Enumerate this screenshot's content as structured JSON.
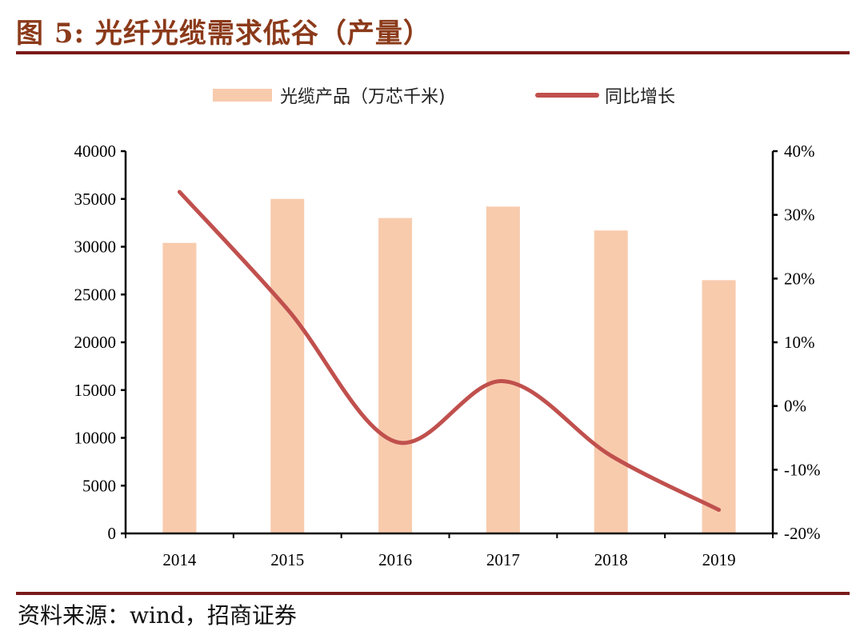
{
  "title": "图 5:  光纤光缆需求低谷（产量）",
  "source": "资料来源：wind，招商证券",
  "colors": {
    "bar": "#F8CBAD",
    "line": "#C0504D",
    "title": "#8B3A1A",
    "rule": "#7A1A1A"
  },
  "chart_data": {
    "type": "bar+line",
    "categories": [
      "2014",
      "2015",
      "2016",
      "2017",
      "2018",
      "2019"
    ],
    "series": [
      {
        "name": "光缆产品（万芯千米)",
        "type": "bar",
        "axis": "left",
        "values": [
          30400,
          35000,
          33000,
          34200,
          31700,
          26500
        ]
      },
      {
        "name": "同比增长",
        "type": "line",
        "axis": "right",
        "smooth": true,
        "values": [
          33.6,
          15.2,
          -5.6,
          3.9,
          -7.8,
          -16.3
        ]
      }
    ],
    "left_axis": {
      "min": 0,
      "max": 40000,
      "ticks": [
        "0",
        "5000",
        "10000",
        "15000",
        "20000",
        "25000",
        "30000",
        "35000",
        "40000"
      ]
    },
    "right_axis": {
      "min": -20,
      "max": 40,
      "ticks": [
        "-20%",
        "-10%",
        "0%",
        "10%",
        "20%",
        "30%",
        "40%"
      ]
    },
    "legend_position": "top",
    "grid": false
  }
}
